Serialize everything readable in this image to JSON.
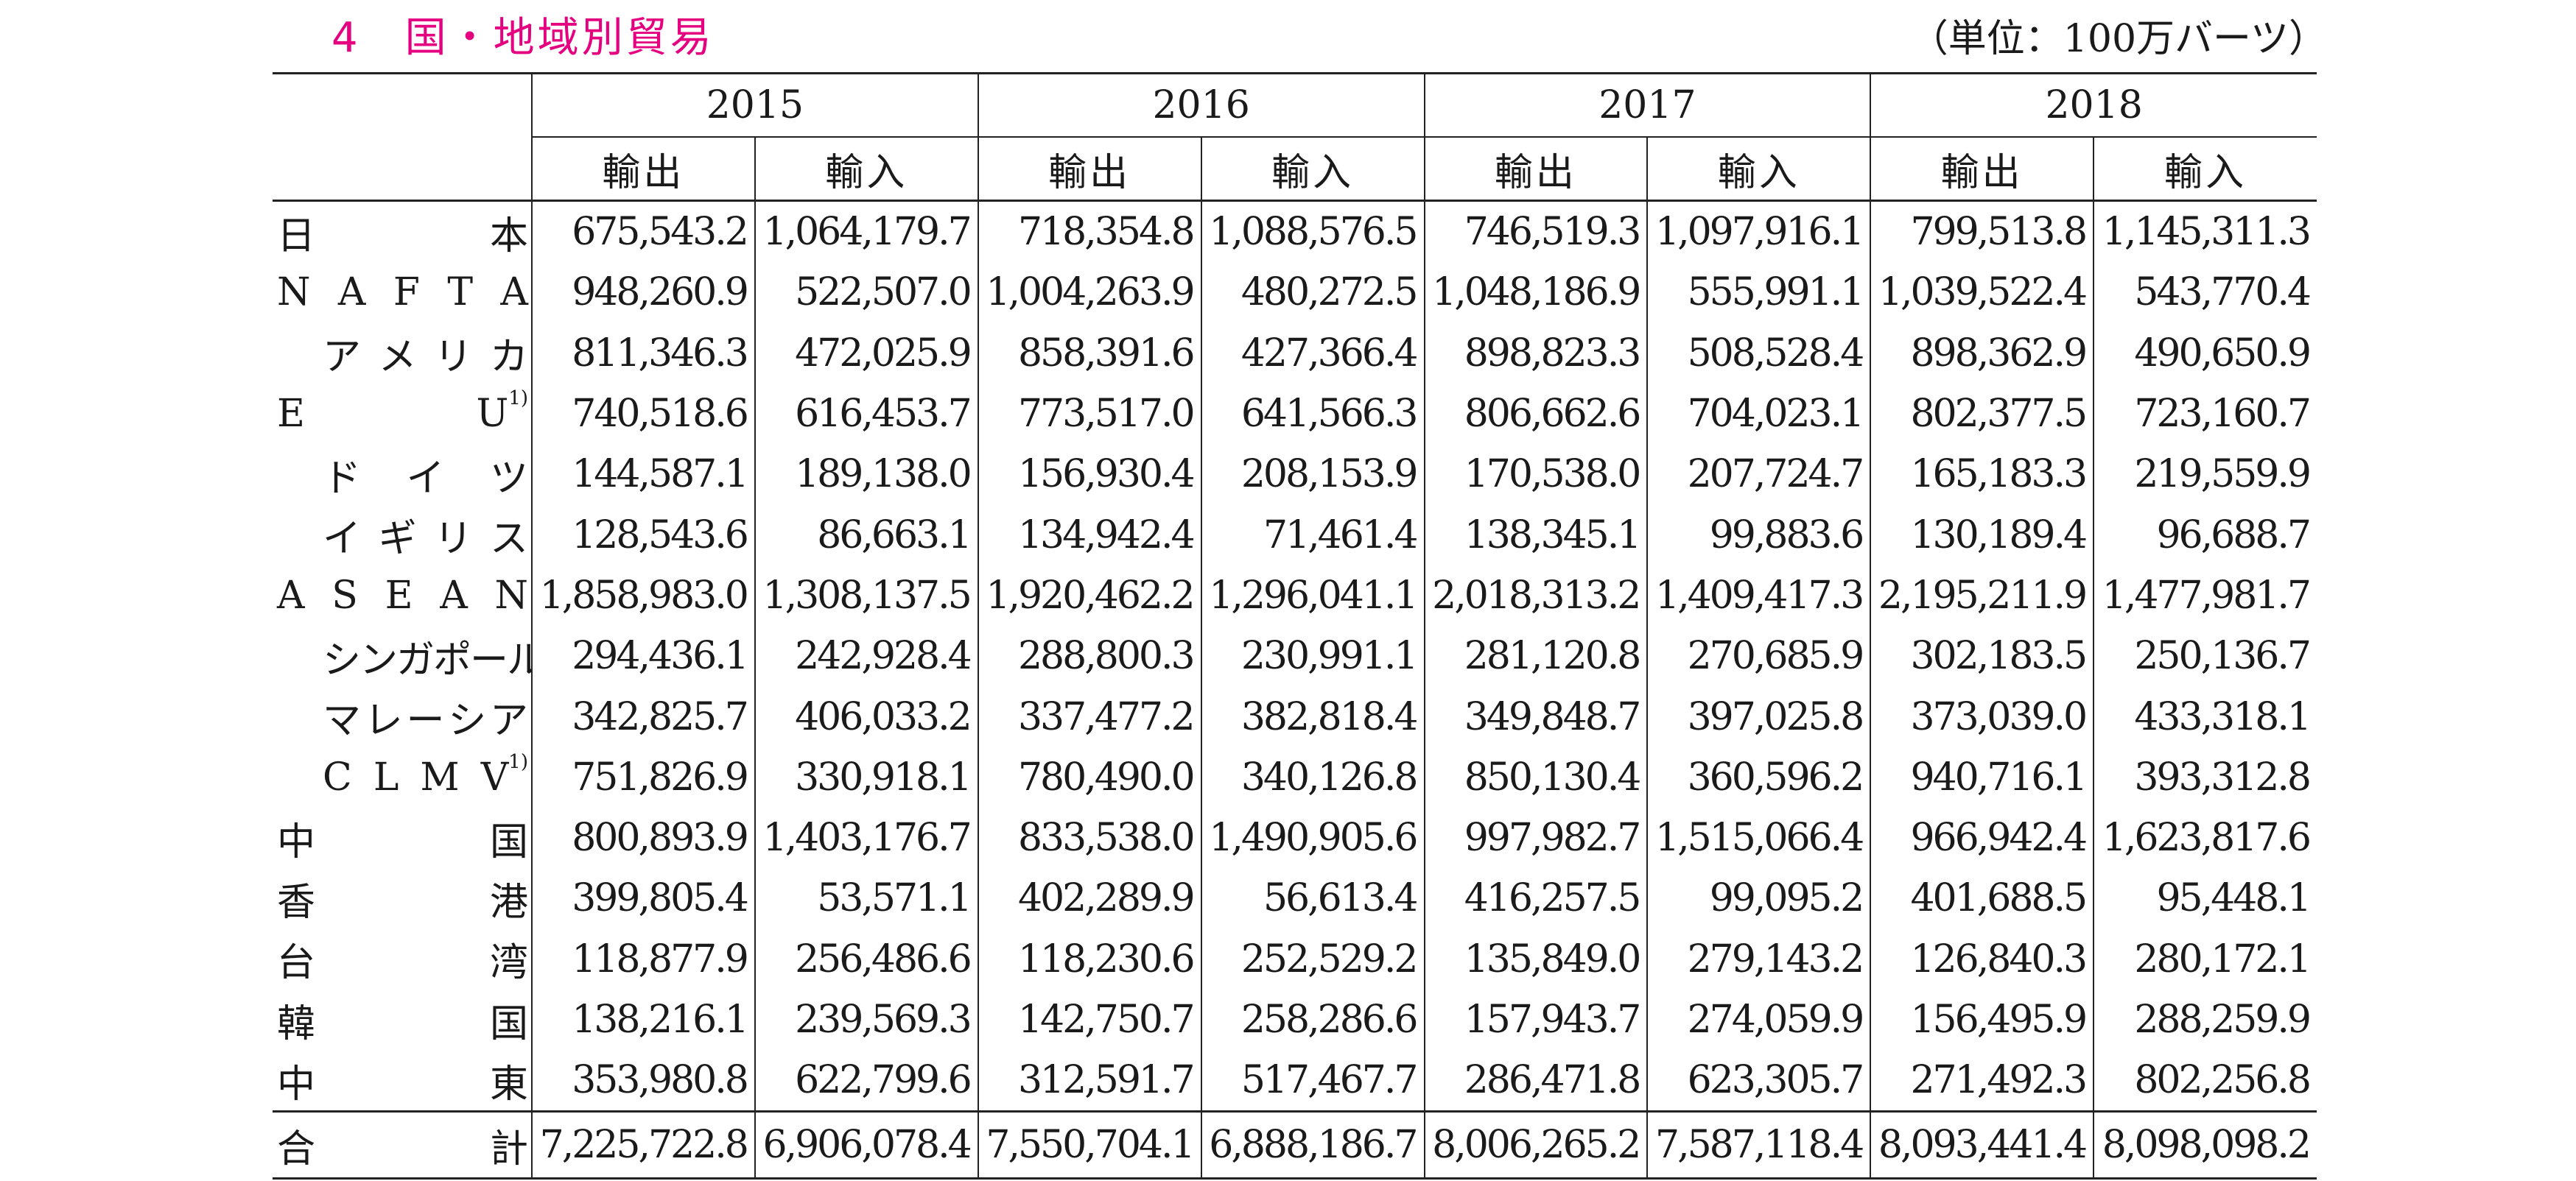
{
  "header": {
    "number": "4",
    "title": "国・地域別貿易",
    "unit": "（単位：100万バーツ）"
  },
  "columns": {
    "years": [
      "2015",
      "2016",
      "2017",
      "2018"
    ],
    "export_label": "輸出",
    "import_label": "輸入"
  },
  "rows": [
    {
      "label": [
        "日",
        "本"
      ],
      "indent": false,
      "sup": "",
      "values": [
        "675,543.2",
        "1,064,179.7",
        "718,354.8",
        "1,088,576.5",
        "746,519.3",
        "1,097,916.1",
        "799,513.8",
        "1,145,311.3"
      ]
    },
    {
      "label": [
        "N",
        "A",
        "F",
        "T",
        "A"
      ],
      "indent": false,
      "sup": "",
      "values": [
        "948,260.9",
        "522,507.0",
        "1,004,263.9",
        "480,272.5",
        "1,048,186.9",
        "555,991.1",
        "1,039,522.4",
        "543,770.4"
      ]
    },
    {
      "label": [
        "ア",
        "メ",
        "リ",
        "カ"
      ],
      "indent": true,
      "sup": "",
      "values": [
        "811,346.3",
        "472,025.9",
        "858,391.6",
        "427,366.4",
        "898,823.3",
        "508,528.4",
        "898,362.9",
        "490,650.9"
      ]
    },
    {
      "label": [
        "E",
        "U"
      ],
      "indent": false,
      "sup": "1)",
      "values": [
        "740,518.6",
        "616,453.7",
        "773,517.0",
        "641,566.3",
        "806,662.6",
        "704,023.1",
        "802,377.5",
        "723,160.7"
      ]
    },
    {
      "label": [
        "ド",
        "イ",
        "ツ"
      ],
      "indent": true,
      "sup": "",
      "values": [
        "144,587.1",
        "189,138.0",
        "156,930.4",
        "208,153.9",
        "170,538.0",
        "207,724.7",
        "165,183.3",
        "219,559.9"
      ]
    },
    {
      "label": [
        "イ",
        "ギ",
        "リ",
        "ス"
      ],
      "indent": true,
      "sup": "",
      "values": [
        "128,543.6",
        "86,663.1",
        "134,942.4",
        "71,461.4",
        "138,345.1",
        "99,883.6",
        "130,189.4",
        "96,688.7"
      ]
    },
    {
      "label": [
        "A",
        "S",
        "E",
        "A",
        "N"
      ],
      "indent": false,
      "sup": "",
      "values": [
        "1,858,983.0",
        "1,308,137.5",
        "1,920,462.2",
        "1,296,041.1",
        "2,018,313.2",
        "1,409,417.3",
        "2,195,211.9",
        "1,477,981.7"
      ]
    },
    {
      "label": [
        "シンガポール"
      ],
      "indent": true,
      "sup": "",
      "values": [
        "294,436.1",
        "242,928.4",
        "288,800.3",
        "230,991.1",
        "281,120.8",
        "270,685.9",
        "302,183.5",
        "250,136.7"
      ]
    },
    {
      "label": [
        "マ",
        "レ",
        "ー",
        "シ",
        "ア"
      ],
      "indent": true,
      "sup": "",
      "values": [
        "342,825.7",
        "406,033.2",
        "337,477.2",
        "382,818.4",
        "349,848.7",
        "397,025.8",
        "373,039.0",
        "433,318.1"
      ]
    },
    {
      "label": [
        "C",
        "L",
        "M",
        "V"
      ],
      "indent": true,
      "sup": "1)",
      "values": [
        "751,826.9",
        "330,918.1",
        "780,490.0",
        "340,126.8",
        "850,130.4",
        "360,596.2",
        "940,716.1",
        "393,312.8"
      ]
    },
    {
      "label": [
        "中",
        "国"
      ],
      "indent": false,
      "sup": "",
      "values": [
        "800,893.9",
        "1,403,176.7",
        "833,538.0",
        "1,490,905.6",
        "997,982.7",
        "1,515,066.4",
        "966,942.4",
        "1,623,817.6"
      ]
    },
    {
      "label": [
        "香",
        "港"
      ],
      "indent": false,
      "sup": "",
      "values": [
        "399,805.4",
        "53,571.1",
        "402,289.9",
        "56,613.4",
        "416,257.5",
        "99,095.2",
        "401,688.5",
        "95,448.1"
      ]
    },
    {
      "label": [
        "台",
        "湾"
      ],
      "indent": false,
      "sup": "",
      "values": [
        "118,877.9",
        "256,486.6",
        "118,230.6",
        "252,529.2",
        "135,849.0",
        "279,143.2",
        "126,840.3",
        "280,172.1"
      ]
    },
    {
      "label": [
        "韓",
        "国"
      ],
      "indent": false,
      "sup": "",
      "values": [
        "138,216.1",
        "239,569.3",
        "142,750.7",
        "258,286.6",
        "157,943.7",
        "274,059.9",
        "156,495.9",
        "288,259.9"
      ]
    },
    {
      "label": [
        "中",
        "東"
      ],
      "indent": false,
      "sup": "",
      "values": [
        "353,980.8",
        "622,799.6",
        "312,591.7",
        "517,467.7",
        "286,471.8",
        "623,305.7",
        "271,492.3",
        "802,256.8"
      ]
    }
  ],
  "total": {
    "label": [
      "合",
      "計"
    ],
    "values": [
      "7,225,722.8",
      "6,906,078.4",
      "7,550,704.1",
      "6,888,186.7",
      "8,006,265.2",
      "7,587,118.4",
      "8,093,441.4",
      "8,098,098.2"
    ]
  },
  "colors": {
    "title": "#e4007f",
    "text": "#1a1a1a",
    "rule": "#222222"
  }
}
